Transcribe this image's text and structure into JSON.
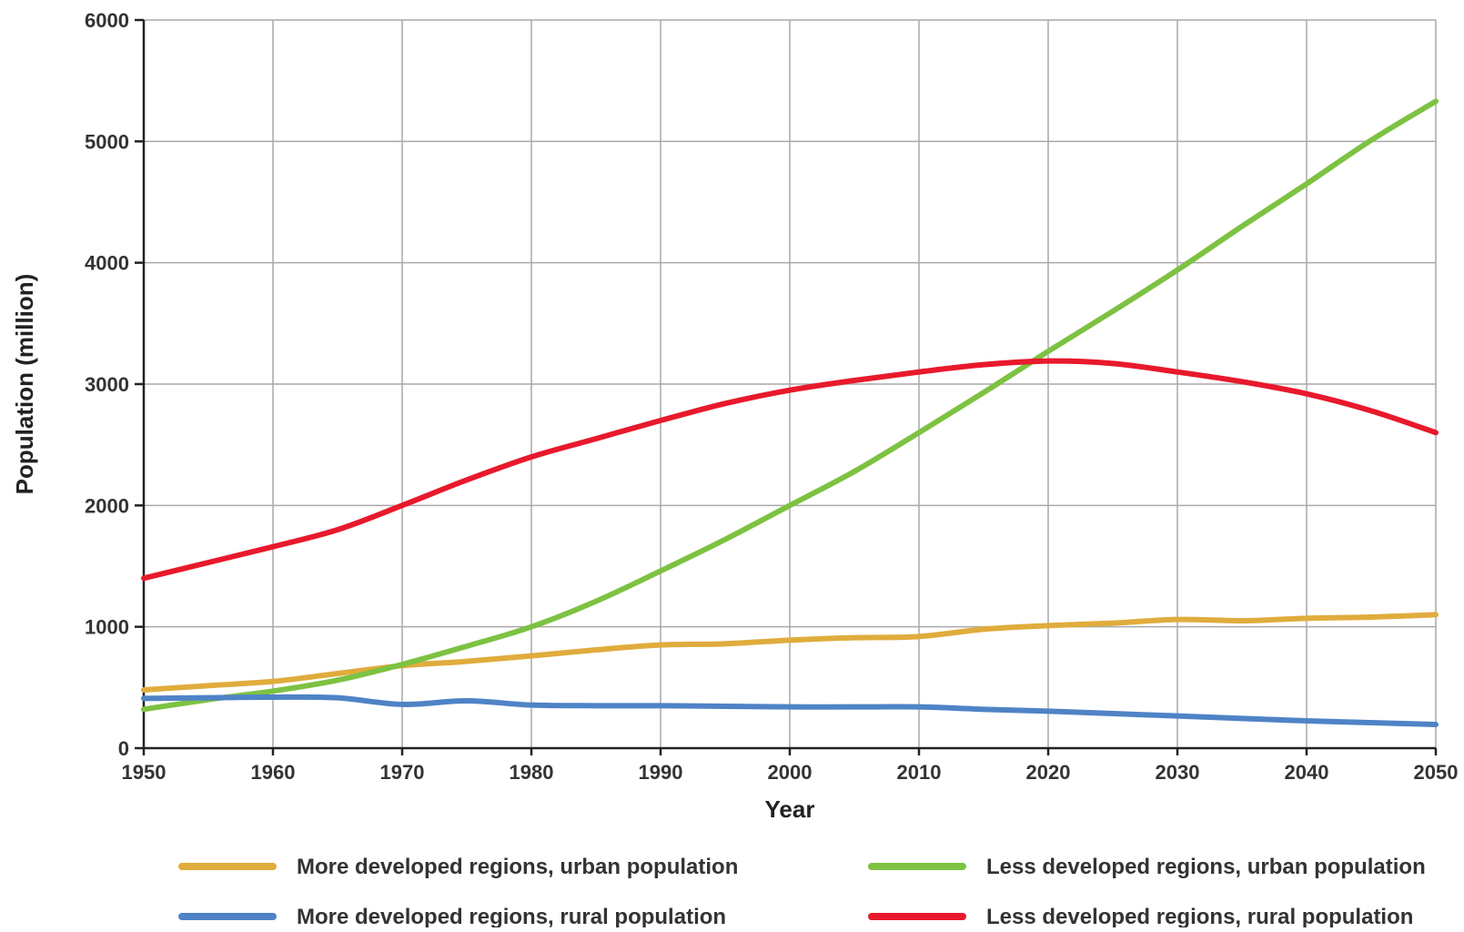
{
  "chart_data": {
    "type": "line",
    "xlabel": "Year",
    "ylabel": "Population (million)",
    "xlim": [
      1950,
      2050
    ],
    "ylim": [
      0,
      6000
    ],
    "x_ticks": [
      "1950",
      "1960",
      "1970",
      "1980",
      "1990",
      "2000",
      "2010",
      "2020",
      "2030",
      "2040",
      "2050"
    ],
    "y_ticks": [
      "0",
      "1000",
      "2000",
      "3000",
      "4000",
      "5000",
      "6000"
    ],
    "grid": true,
    "legend_position": "bottom",
    "x": [
      1950,
      1955,
      1960,
      1965,
      1970,
      1975,
      1980,
      1985,
      1990,
      1995,
      2000,
      2005,
      2010,
      2015,
      2020,
      2025,
      2030,
      2035,
      2040,
      2045,
      2050
    ],
    "series": [
      {
        "name": "More developed regions, urban population",
        "color": "#e0ac3c",
        "values": [
          480,
          515,
          550,
          615,
          680,
          715,
          760,
          810,
          850,
          860,
          890,
          910,
          920,
          980,
          1010,
          1030,
          1060,
          1050,
          1070,
          1080,
          1100
        ]
      },
      {
        "name": "Less developed regions, urban population",
        "color": "#7dc242",
        "values": [
          320,
          400,
          470,
          560,
          690,
          840,
          1000,
          1210,
          1460,
          1720,
          2000,
          2280,
          2600,
          2930,
          3270,
          3600,
          3940,
          4300,
          4650,
          5010,
          5330
        ]
      },
      {
        "name": "More developed regions, rural population",
        "color": "#4f83c6",
        "values": [
          410,
          415,
          420,
          415,
          360,
          390,
          355,
          350,
          350,
          345,
          340,
          340,
          340,
          320,
          305,
          285,
          265,
          245,
          225,
          210,
          195
        ]
      },
      {
        "name": "Less developed regions, rural population",
        "color": "#e8192c",
        "values": [
          1400,
          1530,
          1660,
          1800,
          2000,
          2210,
          2400,
          2550,
          2700,
          2840,
          2950,
          3030,
          3100,
          3160,
          3190,
          3170,
          3100,
          3020,
          2920,
          2780,
          2600
        ]
      }
    ]
  }
}
